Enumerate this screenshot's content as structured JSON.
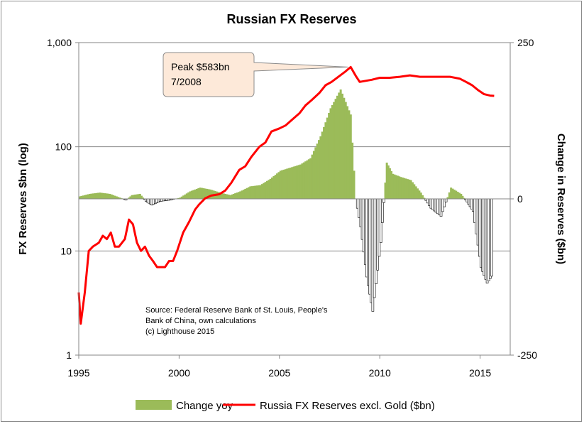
{
  "chart_data": {
    "type": "bar+line",
    "title": "Russian FX Reserves",
    "ylabel_left": "FX Reserves $bn (log)",
    "ylabel_right": "Change in Reserves ($bn)",
    "left_axis": {
      "scale": "log",
      "range": [
        1,
        1000
      ],
      "ticks": [
        1,
        10,
        100,
        1000
      ],
      "tick_labels": [
        "1",
        "10",
        "100",
        "1,000"
      ]
    },
    "right_axis": {
      "range": [
        -250,
        250
      ],
      "ticks": [
        -250,
        0,
        250
      ],
      "tick_labels": [
        "-250",
        "0",
        "250"
      ]
    },
    "x_axis": {
      "range": [
        1995,
        2016.5
      ],
      "ticks": [
        1995,
        2000,
        2005,
        2010,
        2015
      ],
      "tick_labels": [
        "1995",
        "2000",
        "2005",
        "2010",
        "2015"
      ]
    },
    "grid": "horizontal",
    "legend": {
      "placement": "bottom"
    },
    "colors": {
      "bar_positive": "#9bbb59",
      "bar_negative": "#ffffff",
      "bar_negative_edge": "#000000",
      "line": "#ff0000"
    },
    "series": [
      {
        "name": "Change yoy",
        "type": "bar",
        "axis": "right",
        "x": [
          1995.0,
          1995.5,
          1996.0,
          1996.5,
          1997.0,
          1997.3,
          1997.6,
          1998.0,
          1998.3,
          1998.6,
          1999.0,
          1999.5,
          2000.0,
          2000.5,
          2001.0,
          2001.5,
          2002.0,
          2002.5,
          2003.0,
          2003.5,
          2004.0,
          2004.5,
          2005.0,
          2005.5,
          2006.0,
          2006.5,
          2007.0,
          2007.5,
          2008.0,
          2008.5,
          2008.75,
          2009.0,
          2009.3,
          2009.6,
          2010.0,
          2010.3,
          2010.6,
          2011.0,
          2011.5,
          2012.0,
          2012.5,
          2013.0,
          2013.5,
          2014.0,
          2014.3,
          2014.6,
          2015.0,
          2015.3,
          2015.6
        ],
        "values": [
          4,
          8,
          10,
          8,
          2,
          -2,
          6,
          8,
          -4,
          -10,
          -4,
          -2,
          2,
          12,
          18,
          15,
          10,
          6,
          12,
          20,
          22,
          32,
          45,
          50,
          55,
          65,
          100,
          145,
          175,
          135,
          0,
          -45,
          -125,
          -180,
          -70,
          58,
          40,
          35,
          30,
          10,
          -15,
          -28,
          18,
          8,
          -5,
          -20,
          -110,
          -135,
          -120
        ]
      },
      {
        "name": "Russia FX Reserves excl. Gold ($bn)",
        "type": "line",
        "axis": "left",
        "x": [
          1995.0,
          1995.1,
          1995.3,
          1995.5,
          1995.7,
          1996.0,
          1996.2,
          1996.4,
          1996.6,
          1996.8,
          1997.0,
          1997.3,
          1997.5,
          1997.7,
          1997.9,
          1998.1,
          1998.3,
          1998.5,
          1998.7,
          1998.9,
          1999.1,
          1999.3,
          1999.5,
          1999.7,
          1999.9,
          2000.2,
          2000.5,
          2000.8,
          2001.0,
          2001.3,
          2001.6,
          2002.0,
          2002.3,
          2002.6,
          2003.0,
          2003.3,
          2003.6,
          2004.0,
          2004.3,
          2004.6,
          2005.0,
          2005.3,
          2005.6,
          2006.0,
          2006.3,
          2006.6,
          2007.0,
          2007.3,
          2007.6,
          2008.0,
          2008.3,
          2008.55,
          2008.8,
          2009.0,
          2009.3,
          2009.6,
          2010.0,
          2010.5,
          2011.0,
          2011.5,
          2012.0,
          2012.5,
          2013.0,
          2013.5,
          2014.0,
          2014.3,
          2014.6,
          2014.9,
          2015.2,
          2015.5,
          2015.7
        ],
        "values": [
          4,
          2,
          4,
          10,
          11,
          12,
          14,
          13,
          15,
          11,
          11,
          13,
          20,
          18,
          12,
          10,
          11,
          9,
          8,
          7,
          7,
          7,
          8,
          8,
          10,
          15,
          19,
          25,
          28,
          32,
          34,
          35,
          38,
          45,
          60,
          65,
          80,
          100,
          110,
          140,
          150,
          160,
          180,
          210,
          250,
          280,
          330,
          390,
          420,
          480,
          530,
          583,
          480,
          420,
          430,
          440,
          460,
          460,
          470,
          485,
          470,
          470,
          470,
          470,
          450,
          420,
          390,
          350,
          320,
          310,
          308
        ]
      }
    ],
    "callout": {
      "line1": "Peak $583bn",
      "line2": "7/2008",
      "x": 2008.55,
      "y": 583
    },
    "annotation": {
      "lines": [
        "Source: Federal Reserve Bank of St. Louis, People's",
        "Bank of China, own calculations",
        "(c) Lighthouse 2015"
      ]
    }
  }
}
